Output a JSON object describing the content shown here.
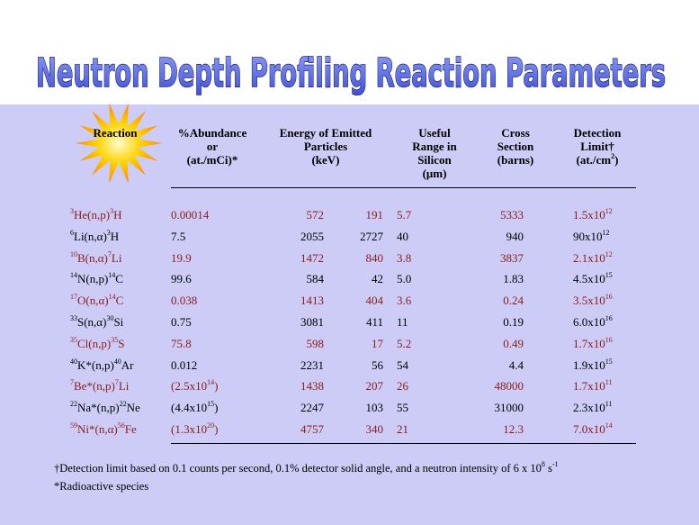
{
  "title": "Neutron Depth Profiling Reaction Parameters",
  "table": {
    "header": [
      [
        "Reaction"
      ],
      [
        "%Abundance",
        "or",
        "(at./mCi)*"
      ],
      [
        "Energy of Emitted",
        "Particles",
        "(keV)"
      ],
      [
        "Useful",
        "Range in",
        "Silicon",
        "(μm)"
      ],
      [
        "Cross",
        "Section",
        "(barns)"
      ],
      [
        "Detection",
        "Limit†",
        [
          "(at./cm",
          {
            "text": "2",
            "sup": true
          },
          ")"
        ]
      ]
    ],
    "rows": [
      {
        "color": "#8b1c1c",
        "cells": [
          [
            {
              "text": "3",
              "sup": true
            },
            "He(n,p)",
            {
              "text": "3",
              "sup": true
            },
            "H"
          ],
          "0.00014",
          "572",
          "191",
          "5.7",
          "5333",
          [
            "1.5x10",
            {
              "text": "12",
              "sup": true
            }
          ]
        ]
      },
      {
        "color": "#000000",
        "cells": [
          [
            {
              "text": "6",
              "sup": true
            },
            "Li(n,α)",
            {
              "text": "3",
              "sup": true
            },
            "H"
          ],
          "7.5",
          "2055",
          "2727",
          "40",
          "940",
          [
            "90x10",
            {
              "text": "12",
              "sup": true
            }
          ]
        ]
      },
      {
        "color": "#8b1c1c",
        "cells": [
          [
            {
              "text": "10",
              "sup": true
            },
            "B(n,α)",
            {
              "text": "7",
              "sup": true
            },
            "Li"
          ],
          "19.9",
          "1472",
          "840",
          "3.8",
          "3837",
          [
            "2.1x10",
            {
              "text": "12",
              "sup": true
            }
          ]
        ]
      },
      {
        "color": "#000000",
        "cells": [
          [
            {
              "text": "14",
              "sup": true
            },
            "N(n,p)",
            {
              "text": "14",
              "sup": true
            },
            "C"
          ],
          "99.6",
          "584",
          "42",
          "5.0",
          "1.83",
          [
            "4.5x10",
            {
              "text": "15",
              "sup": true
            }
          ]
        ]
      },
      {
        "color": "#8b1c1c",
        "cells": [
          [
            {
              "text": "17",
              "sup": true
            },
            "O(n,α)",
            {
              "text": "14",
              "sup": true
            },
            "C"
          ],
          "0.038",
          "1413",
          "404",
          "3.6",
          "0.24",
          [
            "3.5x10",
            {
              "text": "16",
              "sup": true
            }
          ]
        ]
      },
      {
        "color": "#000000",
        "cells": [
          [
            {
              "text": "33",
              "sup": true
            },
            "S(n,α)",
            {
              "text": "30",
              "sup": true
            },
            "Si"
          ],
          "0.75",
          "3081",
          "411",
          "11",
          "0.19",
          [
            "6.0x10",
            {
              "text": "16",
              "sup": true
            }
          ]
        ]
      },
      {
        "color": "#8b1c1c",
        "cells": [
          [
            {
              "text": "35",
              "sup": true
            },
            "Cl(n,p)",
            {
              "text": "35",
              "sup": true
            },
            "S"
          ],
          "75.8",
          "598",
          "17",
          "5.2",
          "0.49",
          [
            "1.7x10",
            {
              "text": "16",
              "sup": true
            }
          ]
        ]
      },
      {
        "color": "#000000",
        "cells": [
          [
            {
              "text": "40",
              "sup": true
            },
            "K*(n,p)",
            {
              "text": "40",
              "sup": true
            },
            "Ar"
          ],
          "0.012",
          "2231",
          "56",
          "54",
          "4.4",
          [
            "1.9x10",
            {
              "text": "15",
              "sup": true
            }
          ]
        ]
      },
      {
        "color": "#8b1c1c",
        "cells": [
          [
            {
              "text": "7",
              "sup": true
            },
            "Be*(n,p)",
            {
              "text": "7",
              "sup": true
            },
            "Li"
          ],
          [
            "(2.5x10",
            {
              "text": "14",
              "sup": true
            },
            ")"
          ],
          "1438",
          "207",
          "26",
          "48000",
          [
            "1.7x10",
            {
              "text": "11",
              "sup": true
            }
          ]
        ]
      },
      {
        "color": "#000000",
        "cells": [
          [
            {
              "text": "22",
              "sup": true
            },
            "Na*(n,p)",
            {
              "text": "22",
              "sup": true
            },
            "Ne"
          ],
          [
            "(4.4x10",
            {
              "text": "15",
              "sup": true
            },
            ")"
          ],
          "2247",
          "103",
          "55",
          "31000",
          [
            "2.3x10",
            {
              "text": "11",
              "sup": true
            }
          ]
        ]
      },
      {
        "color": "#8b1c1c",
        "cells": [
          [
            {
              "text": "59",
              "sup": true
            },
            "Ni*(n,α)",
            {
              "text": "56",
              "sup": true
            },
            "Fe"
          ],
          [
            "(1.3x10",
            {
              "text": "20",
              "sup": true
            },
            ")"
          ],
          "4757",
          "340",
          "21",
          "12.3",
          [
            "7.0x10",
            {
              "text": "14",
              "sup": true
            }
          ]
        ]
      }
    ]
  },
  "footnotes": [
    [
      "†Detection limit based on 0.1 counts per second, 0.1% detector solid angle, and a neutron intensity of 6 x 10",
      {
        "text": "8",
        "sup": true
      },
      " s",
      {
        "text": "-1",
        "sup": true
      }
    ],
    "*Radioactive species"
  ]
}
